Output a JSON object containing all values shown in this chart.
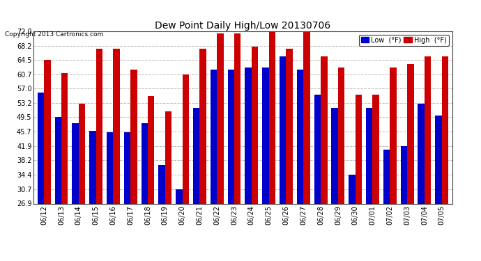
{
  "title": "Dew Point Daily High/Low 20130706",
  "copyright": "Copyright 2013 Cartronics.com",
  "legend_low": "Low  (°F)",
  "legend_high": "High  (°F)",
  "dates": [
    "06/12",
    "06/13",
    "06/14",
    "06/15",
    "06/16",
    "06/17",
    "06/18",
    "06/19",
    "06/20",
    "06/21",
    "06/22",
    "06/23",
    "06/24",
    "06/25",
    "06/26",
    "06/27",
    "06/28",
    "06/29",
    "06/30",
    "07/01",
    "07/02",
    "07/03",
    "07/04",
    "07/05"
  ],
  "low_vals": [
    56.0,
    49.5,
    48.0,
    46.0,
    45.5,
    45.5,
    48.0,
    37.0,
    30.7,
    52.0,
    62.0,
    62.0,
    62.5,
    62.5,
    65.5,
    62.0,
    55.5,
    52.0,
    34.4,
    52.0,
    41.0,
    42.0,
    53.0,
    50.0
  ],
  "high_vals": [
    64.5,
    61.0,
    53.0,
    67.5,
    67.5,
    62.0,
    55.0,
    51.0,
    60.7,
    67.5,
    71.5,
    71.5,
    68.0,
    72.0,
    67.5,
    72.0,
    65.5,
    62.5,
    55.5,
    55.5,
    62.5,
    63.5,
    65.5,
    65.5
  ],
  "y_ticks": [
    26.9,
    30.7,
    34.4,
    38.2,
    41.9,
    45.7,
    49.5,
    53.2,
    57.0,
    60.7,
    64.5,
    68.2,
    72.0
  ],
  "ymin": 26.9,
  "ymax": 72.0,
  "low_color": "#0000cc",
  "high_color": "#cc0000",
  "background_color": "#ffffff",
  "plot_bg_color": "#ffffff",
  "grid_color": "#bbbbbb",
  "bar_width": 0.38
}
